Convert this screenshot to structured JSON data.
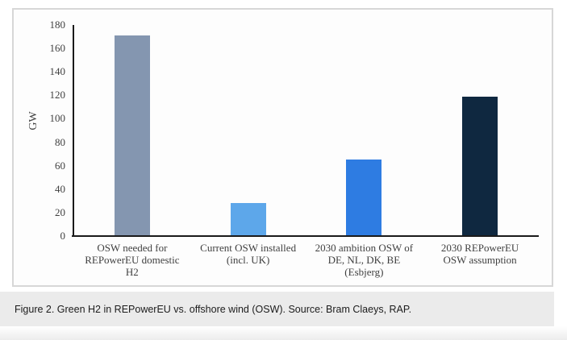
{
  "figure": {
    "caption": "Figure 2. Green H2 in REPowerEU vs. offshore wind (OSW). Source: Bram Claeys, RAP."
  },
  "chart_data": {
    "type": "bar",
    "title": "",
    "xlabel": "",
    "ylabel": "GW",
    "categories": [
      "OSW needed for\nREPowerEU domestic\nH2",
      "Current OSW installed\n(incl. UK)",
      "2030 ambition OSW of\nDE, NL, DK, BE\n(Esbjerg)",
      "2030 REPowerEU\nOSW assumption"
    ],
    "values": [
      171,
      28,
      65,
      119
    ],
    "bar_colors": [
      "#8496b0",
      "#5da7ea",
      "#2e7ce2",
      "#0f2840"
    ],
    "ylim": [
      0,
      180
    ],
    "yticks": [
      0,
      20,
      40,
      60,
      80,
      100,
      120,
      140,
      160,
      180
    ],
    "grid": false,
    "legend": false
  },
  "colors": {
    "panel_border": "#d7d7d7",
    "axis": "#1a1a1a",
    "caption_band": "#ebebeb",
    "chart_text": "#3f3f3f"
  }
}
